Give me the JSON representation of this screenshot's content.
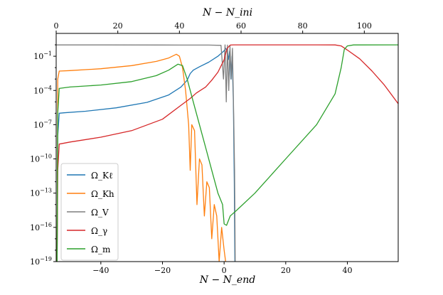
{
  "chart_data": {
    "type": "line",
    "title": "",
    "xlabel": "N − N_end",
    "x2label": "N − N_ini",
    "ylabel": "",
    "xlim": [
      -54.5,
      56.5
    ],
    "x2lim": [
      0,
      111
    ],
    "ylim": [
      1e-19,
      10
    ],
    "yscale": "log",
    "grid": false,
    "legend_position": "lower-left",
    "x_ticks": [
      -40,
      -20,
      0,
      20,
      40
    ],
    "x2_ticks": [
      0,
      20,
      40,
      60,
      80,
      100
    ],
    "y_tick_exponents": [
      -19,
      -16,
      -13,
      -10,
      -7,
      -4,
      -1
    ],
    "series": [
      {
        "name": "Ω_Kℓ",
        "color": "#1f77b4",
        "points": [
          [
            -54.2,
            1e-19
          ],
          [
            -54,
            1e-08
          ],
          [
            -53.5,
            1e-06
          ],
          [
            -52,
            1.1e-06
          ],
          [
            -45,
            1.5e-06
          ],
          [
            -35,
            3e-06
          ],
          [
            -25,
            9e-06
          ],
          [
            -18,
            4e-05
          ],
          [
            -14,
            0.0002
          ],
          [
            -12,
            0.0008
          ],
          [
            -11,
            0.003
          ],
          [
            -10,
            0.006
          ],
          [
            -8,
            0.012
          ],
          [
            -5,
            0.03
          ],
          [
            -2,
            0.1
          ],
          [
            0,
            0.3
          ],
          [
            0.5,
            0.5
          ],
          [
            1,
            0.3
          ],
          [
            1.4,
            0.05
          ],
          [
            1.8,
            0.3
          ],
          [
            2.2,
            0.001
          ],
          [
            2.6,
            0.1
          ],
          [
            3,
            1e-05
          ],
          [
            3.3,
            1e-12
          ],
          [
            3.5,
            1e-19
          ]
        ]
      },
      {
        "name": "Ω_Kh",
        "color": "#ff7f0e",
        "points": [
          [
            -54.2,
            1e-19
          ],
          [
            -54,
            0.001
          ],
          [
            -53.5,
            0.005
          ],
          [
            -50,
            0.0055
          ],
          [
            -40,
            0.008
          ],
          [
            -30,
            0.015
          ],
          [
            -22,
            0.035
          ],
          [
            -18,
            0.07
          ],
          [
            -15.5,
            0.15
          ],
          [
            -14.5,
            0.1
          ],
          [
            -13.5,
            0.01
          ],
          [
            -12.5,
            0.0001
          ],
          [
            -11.5,
            1e-07
          ],
          [
            -11,
            1e-11
          ],
          [
            -10.5,
            1e-07
          ],
          [
            -9.6,
            3e-08
          ],
          [
            -8.8,
            1e-14
          ],
          [
            -8,
            1e-10
          ],
          [
            -7.2,
            3e-11
          ],
          [
            -6.4,
            1e-15
          ],
          [
            -5.6,
            1e-12
          ],
          [
            -4.8,
            3e-13
          ],
          [
            -4,
            1e-17
          ],
          [
            -3.2,
            1e-14
          ],
          [
            -2.4,
            1e-15
          ],
          [
            -1.6,
            1e-19
          ],
          [
            -0.8,
            1e-16
          ],
          [
            0,
            1e-18
          ],
          [
            0.5,
            1e-19
          ]
        ]
      },
      {
        "name": "Ω_V",
        "color": "#7f7f7f",
        "points": [
          [
            -54.5,
            0.98
          ],
          [
            -40,
            0.98
          ],
          [
            -20,
            0.97
          ],
          [
            -5,
            0.95
          ],
          [
            -1,
            0.9
          ],
          [
            -0.2,
            0.001
          ],
          [
            0.3,
            0.98
          ],
          [
            0.7,
            1e-05
          ],
          [
            1.1,
            0.95
          ],
          [
            1.5,
            0.0001
          ],
          [
            1.9,
            0.9
          ],
          [
            2.3,
            0.001
          ],
          [
            2.7,
            0.5
          ],
          [
            3.1,
            1e-06
          ],
          [
            3.4,
            1e-11
          ],
          [
            3.6,
            1e-19
          ]
        ]
      },
      {
        "name": "Ω_γ",
        "color": "#d62728",
        "points": [
          [
            -54.2,
            1e-19
          ],
          [
            -54,
            1e-11
          ],
          [
            -53.5,
            2e-09
          ],
          [
            -50,
            3e-09
          ],
          [
            -40,
            8e-09
          ],
          [
            -30,
            3e-08
          ],
          [
            -20,
            3e-07
          ],
          [
            -14,
            5e-06
          ],
          [
            -11,
            2e-05
          ],
          [
            -9,
            6e-05
          ],
          [
            -6,
            0.0002
          ],
          [
            -4,
            0.0008
          ],
          [
            -2,
            0.004
          ],
          [
            0,
            0.05
          ],
          [
            1,
            0.5
          ],
          [
            2,
            0.95
          ],
          [
            3,
            0.99
          ],
          [
            20,
            0.99
          ],
          [
            30,
            0.99
          ],
          [
            36,
            0.98
          ],
          [
            38,
            0.8
          ],
          [
            40,
            0.35
          ],
          [
            44,
            0.06
          ],
          [
            48,
            0.005
          ],
          [
            52,
            0.0003
          ],
          [
            56.5,
            7e-06
          ]
        ]
      },
      {
        "name": "Ω_m",
        "color": "#2ca02c",
        "points": [
          [
            -54.2,
            1e-19
          ],
          [
            -54,
            1e-06
          ],
          [
            -53.5,
            0.00015
          ],
          [
            -50,
            0.0002
          ],
          [
            -40,
            0.0003
          ],
          [
            -30,
            0.0006
          ],
          [
            -22,
            0.002
          ],
          [
            -18,
            0.006
          ],
          [
            -15,
            0.02
          ],
          [
            -13.5,
            0.015
          ],
          [
            -12,
            0.001
          ],
          [
            -10,
            1e-05
          ],
          [
            -8,
            1e-07
          ],
          [
            -6,
            1e-09
          ],
          [
            -4,
            1e-11
          ],
          [
            -2,
            1e-13
          ],
          [
            -0.5,
            1e-14
          ],
          [
            0,
            2e-16
          ],
          [
            0.8,
            1.5e-16
          ],
          [
            2,
            1e-15
          ],
          [
            4,
            3e-15
          ],
          [
            10,
            1e-13
          ],
          [
            20,
            1e-10
          ],
          [
            30,
            1e-07
          ],
          [
            36,
            5e-05
          ],
          [
            38,
            0.01
          ],
          [
            39,
            0.4
          ],
          [
            40,
            0.8
          ],
          [
            42,
            0.98
          ],
          [
            56.5,
            1.0
          ]
        ]
      }
    ]
  }
}
